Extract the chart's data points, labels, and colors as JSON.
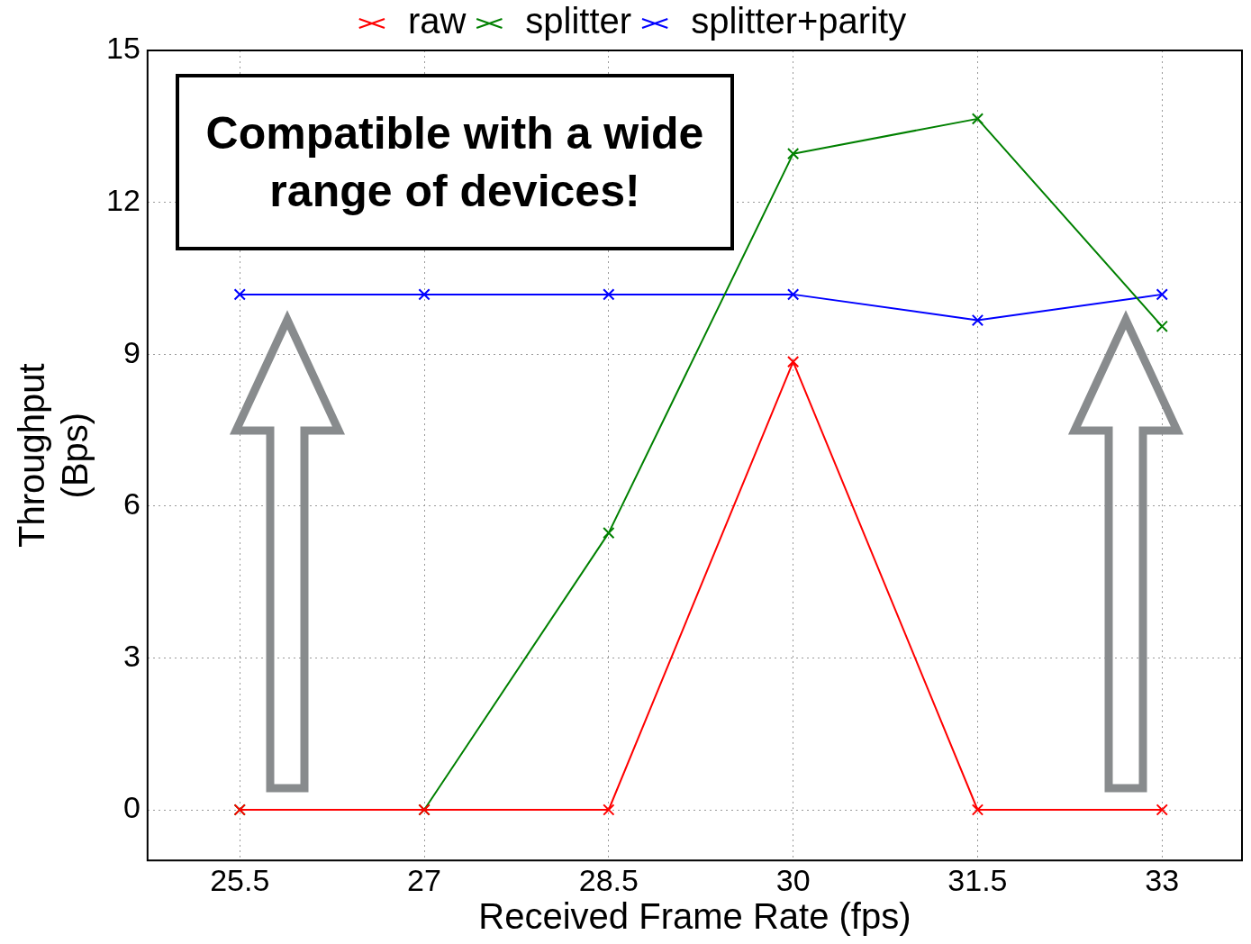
{
  "chart_data": {
    "type": "line",
    "xlabel": "Received Frame Rate (fps)",
    "ylabel": "Throughput\n(Bps)",
    "x": [
      25.5,
      27,
      28.5,
      30,
      31.5,
      33
    ],
    "series": [
      {
        "name": "raw",
        "color": "#ff0000",
        "values": [
          0,
          0,
          0,
          8.85,
          0,
          0
        ]
      },
      {
        "name": "splitter",
        "color": "#008000",
        "values": [
          0,
          0,
          5.47,
          12.96,
          13.65,
          9.55
        ]
      },
      {
        "name": "splitter+parity",
        "color": "#0000ff",
        "values": [
          10.18,
          10.18,
          10.18,
          10.18,
          9.67,
          10.18
        ]
      }
    ],
    "xlim": [
      24.75,
      33.65
    ],
    "ylim": [
      -1,
      15
    ],
    "xticks": [
      25.5,
      27,
      28.5,
      30,
      31.5,
      33
    ],
    "yticks": [
      0,
      3,
      6,
      9,
      12,
      15
    ],
    "grid": true,
    "legend": "top",
    "marker": "cross",
    "line_style": "solid",
    "annotations": [
      "Compatible with a wide range of devices!"
    ]
  }
}
